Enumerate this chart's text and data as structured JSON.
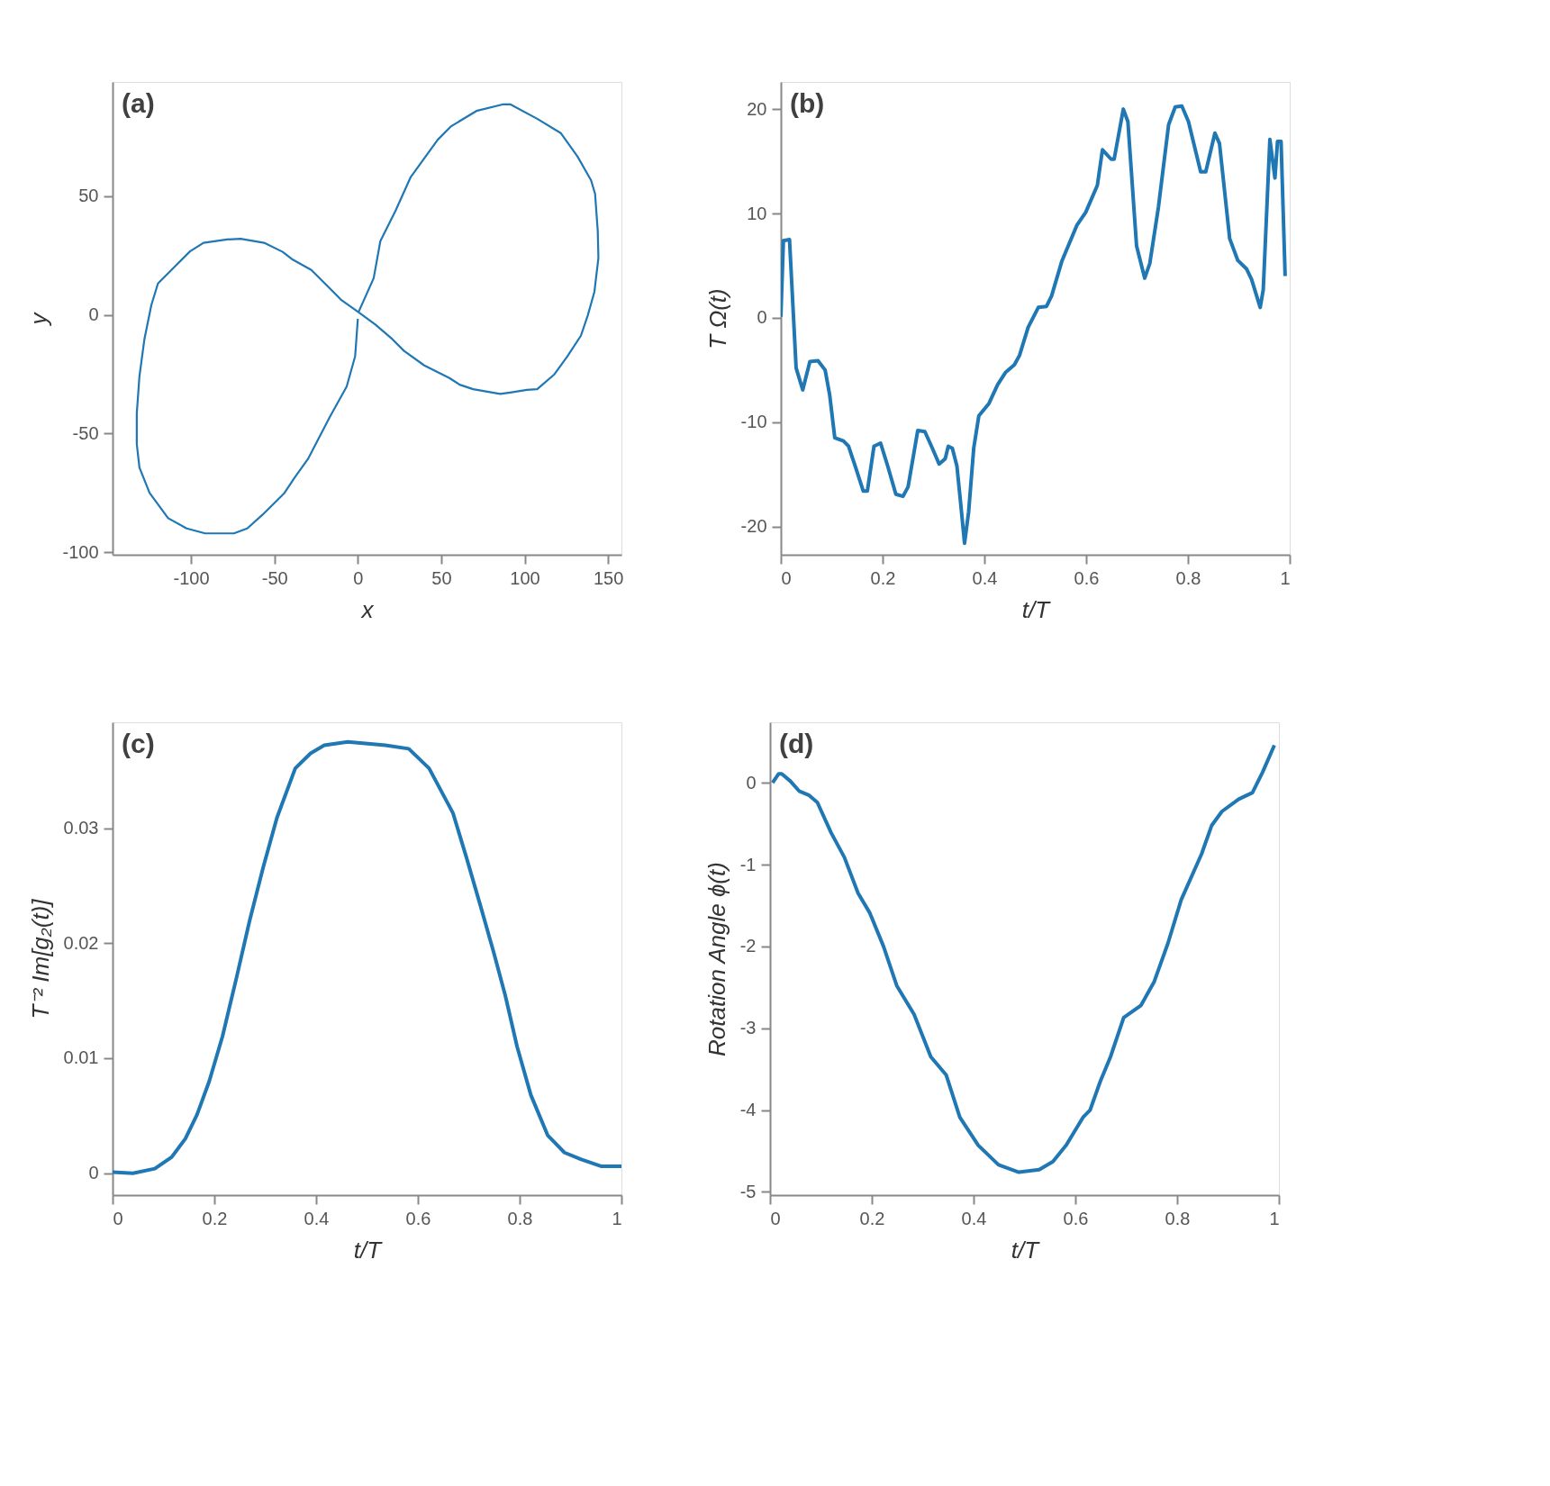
{
  "chart_data": [
    {
      "type": "line",
      "title": "(a)",
      "xlabel": "x",
      "ylabel": "y",
      "xlim": [
        -147,
        158
      ],
      "ylim": [
        -101,
        98
      ],
      "xticks": [
        -100,
        -50,
        0,
        50,
        100,
        150
      ],
      "yticks": [
        -100,
        -50,
        0,
        50
      ],
      "x": [
        0.4,
        9.5,
        13.5,
        22.6,
        31.7,
        47.9,
        56.0,
        71.1,
        87.3,
        91.3,
        107.5,
        121.6,
        131.7,
        139.8,
        142.2,
        143.8,
        144.2,
        141.8,
        137.8,
        133.7,
        125.7,
        117.6,
        107.5,
        101.4,
        91.3,
        85.3,
        69.1,
        61.0,
        54.9,
        39.8,
        27.7,
        20.6,
        10.5,
        0.4,
        -9.7,
        -18.8,
        -27.9,
        -39.0,
        -45.1,
        -56.2,
        -70.3,
        -78.4,
        -92.5,
        -100.6,
        -109.7,
        -119.8,
        -123.8,
        -127.9,
        -130.9,
        -132.5,
        -132.5,
        -130.9,
        -124.8,
        -113.7,
        -102.6,
        -91.5,
        -74.3,
        -66.3,
        -57.2,
        -44.0,
        -38.0,
        -29.9,
        -16.8,
        -6.7,
        -1.6,
        0.0
      ],
      "series": [
        {
          "color": "#1f77b4",
          "values": [
            1.1,
            15.4,
            31.0,
            43.8,
            58.0,
            73.7,
            79.4,
            85.8,
            88.6,
            88.6,
            82.5,
            76.5,
            66.6,
            56.6,
            50.9,
            35.3,
            23.9,
            9.7,
            -0.3,
            -8.8,
            -17.4,
            -25.2,
            -31.3,
            -31.6,
            -32.7,
            -33.3,
            -31.3,
            -29.4,
            -26.6,
            -21.3,
            -15.2,
            -10.2,
            -4.1,
            1.1,
            6.1,
            12.5,
            18.9,
            23.2,
            26.5,
            30.3,
            32.0,
            31.7,
            30.3,
            26.7,
            20.3,
            13.2,
            4.0,
            -10.2,
            -25.9,
            -41.5,
            -54.3,
            -64.3,
            -75.0,
            -85.6,
            -89.9,
            -92.0,
            -92.0,
            -89.9,
            -84.2,
            -75.0,
            -68.6,
            -60.7,
            -43.0,
            -30.2,
            -17.4,
            -1.7
          ]
        }
      ]
    },
    {
      "type": "line",
      "title": "(b)",
      "xlabel": "t/T",
      "ylabel": "T Ω(t)",
      "xlim": [
        0,
        1
      ],
      "ylim": [
        -22.7,
        22.6
      ],
      "xticks": [
        0,
        0.2,
        0.4,
        0.6,
        0.8,
        1
      ],
      "yticks": [
        -20,
        -10,
        0,
        10,
        20
      ],
      "x": [
        0,
        0.005,
        0.017,
        0.03,
        0.043,
        0.057,
        0.073,
        0.087,
        0.096,
        0.106,
        0.123,
        0.133,
        0.146,
        0.162,
        0.17,
        0.183,
        0.196,
        0.21,
        0.226,
        0.24,
        0.25,
        0.269,
        0.283,
        0.296,
        0.311,
        0.323,
        0.329,
        0.337,
        0.346,
        0.353,
        0.361,
        0.369,
        0.379,
        0.389,
        0.409,
        0.426,
        0.442,
        0.459,
        0.469,
        0.486,
        0.506,
        0.522,
        0.532,
        0.552,
        0.582,
        0.599,
        0.622,
        0.632,
        0.649,
        0.655,
        0.673,
        0.682,
        0.699,
        0.715,
        0.725,
        0.742,
        0.762,
        0.775,
        0.788,
        0.801,
        0.825,
        0.835,
        0.853,
        0.862,
        0.882,
        0.898,
        0.915,
        0.925,
        0.942,
        0.948,
        0.961,
        0.971,
        0.976,
        0.983,
        0.991
      ],
      "series": [
        {
          "color": "#1f77b4",
          "values": [
            0.1,
            7.4,
            7.5,
            -4.8,
            -6.9,
            -4.2,
            -4.1,
            -5.0,
            -7.4,
            -11.5,
            -11.8,
            -12.3,
            -14.2,
            -16.6,
            -16.6,
            -12.3,
            -12.0,
            -14.2,
            -16.9,
            -17.1,
            -16.2,
            -10.8,
            -10.9,
            -12.3,
            -14.0,
            -13.5,
            -12.3,
            -12.5,
            -14.2,
            -17.6,
            -21.6,
            -18.6,
            -12.5,
            -9.4,
            -8.2,
            -6.4,
            -5.2,
            -4.5,
            -3.6,
            -0.9,
            1.0,
            1.1,
            2.1,
            5.4,
            8.9,
            10.1,
            12.7,
            16.1,
            15.2,
            15.2,
            20.0,
            18.8,
            6.9,
            3.8,
            5.2,
            10.6,
            18.5,
            20.2,
            20.3,
            18.8,
            14.0,
            14.0,
            17.7,
            16.7,
            7.6,
            5.5,
            4.7,
            3.7,
            1.0,
            2.7,
            17.1,
            13.4,
            16.9,
            16.9,
            4.0
          ]
        }
      ]
    },
    {
      "type": "line",
      "title": "(c)",
      "xlabel": "t/T",
      "ylabel": "T⁻² Im[g₂(t)]",
      "xlim": [
        0,
        1
      ],
      "ylim": [
        -0.0019,
        0.0392
      ],
      "xticks": [
        0,
        0.2,
        0.4,
        0.6,
        0.8,
        1
      ],
      "yticks": [
        0,
        0.01,
        0.02,
        0.03
      ],
      "x": [
        0,
        0.04,
        0.083,
        0.116,
        0.143,
        0.166,
        0.19,
        0.216,
        0.243,
        0.269,
        0.296,
        0.323,
        0.359,
        0.389,
        0.416,
        0.462,
        0.536,
        0.582,
        0.622,
        0.669,
        0.695,
        0.722,
        0.749,
        0.772,
        0.795,
        0.822,
        0.855,
        0.888,
        0.921,
        0.961,
        1.0
      ],
      "series": [
        {
          "color": "#1f77b4",
          "values": [
            0.0001,
            0,
            0.0004,
            0.0014,
            0.003,
            0.0051,
            0.008,
            0.0119,
            0.0169,
            0.0219,
            0.0266,
            0.0309,
            0.0352,
            0.0365,
            0.0372,
            0.0375,
            0.0372,
            0.0369,
            0.0352,
            0.0313,
            0.0275,
            0.0234,
            0.0192,
            0.0154,
            0.011,
            0.0068,
            0.0033,
            0.0018,
            0.0012,
            0.0006,
            0.0006
          ]
        }
      ]
    },
    {
      "type": "line",
      "title": "(d)",
      "xlabel": "t/T",
      "ylabel": "Rotation Angle  ϕ(t)",
      "xlim": [
        0,
        1
      ],
      "ylim": [
        -5.04,
        0.74
      ],
      "xticks": [
        0,
        0.2,
        0.4,
        0.6,
        0.8,
        1
      ],
      "yticks": [
        -5,
        -4,
        -3,
        -2,
        -1,
        0
      ],
      "x": [
        0.005,
        0.017,
        0.023,
        0.04,
        0.057,
        0.076,
        0.093,
        0.12,
        0.146,
        0.173,
        0.196,
        0.223,
        0.249,
        0.283,
        0.316,
        0.346,
        0.373,
        0.409,
        0.449,
        0.489,
        0.529,
        0.556,
        0.582,
        0.615,
        0.629,
        0.649,
        0.669,
        0.695,
        0.729,
        0.755,
        0.782,
        0.808,
        0.848,
        0.868,
        0.888,
        0.921,
        0.948,
        0.968,
        0.991
      ],
      "series": [
        {
          "color": "#1f77b4",
          "values": [
            0,
            0.11,
            0.11,
            0.02,
            -0.1,
            -0.15,
            -0.24,
            -0.61,
            -0.91,
            -1.35,
            -1.59,
            -2.0,
            -2.48,
            -2.83,
            -3.35,
            -3.57,
            -4.09,
            -4.43,
            -4.67,
            -4.76,
            -4.73,
            -4.63,
            -4.43,
            -4.09,
            -4.0,
            -3.65,
            -3.35,
            -2.87,
            -2.72,
            -2.43,
            -1.96,
            -1.43,
            -0.87,
            -0.52,
            -0.35,
            -0.2,
            -0.12,
            0.13,
            0.46
          ]
        }
      ]
    }
  ]
}
